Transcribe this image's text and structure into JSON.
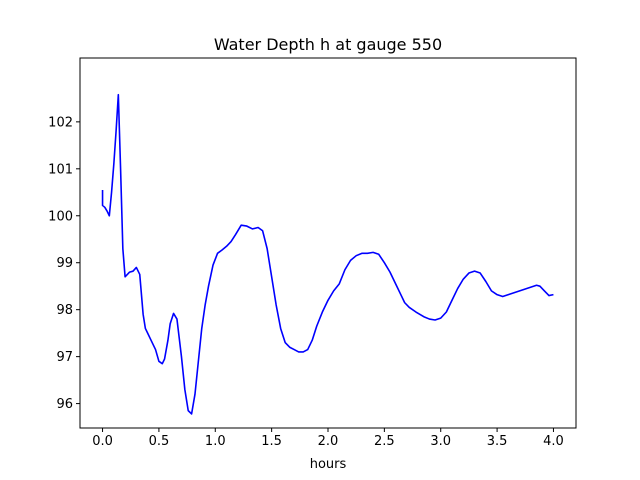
{
  "chart_data": {
    "type": "line",
    "title": "Water Depth h at gauge 550",
    "xlabel": "hours",
    "ylabel": "",
    "xlim": [
      -0.2,
      4.2
    ],
    "ylim": [
      95.48,
      103.36
    ],
    "xticks": [
      0.0,
      0.5,
      1.0,
      1.5,
      2.0,
      2.5,
      3.0,
      3.5,
      4.0
    ],
    "xtick_labels": [
      "0.0",
      "0.5",
      "1.0",
      "1.5",
      "2.0",
      "2.5",
      "3.0",
      "3.5",
      "4.0"
    ],
    "yticks": [
      96,
      97,
      98,
      99,
      100,
      101,
      102
    ],
    "ytick_labels": [
      "96",
      "97",
      "98",
      "99",
      "100",
      "101",
      "102"
    ],
    "grid": false,
    "series": [
      {
        "color": "#0000ff",
        "x": [
          0.0,
          0.0,
          0.02,
          0.04,
          0.06,
          0.08,
          0.1,
          0.12,
          0.14,
          0.16,
          0.18,
          0.2,
          0.22,
          0.24,
          0.27,
          0.3,
          0.33,
          0.36,
          0.38,
          0.4,
          0.43,
          0.47,
          0.5,
          0.53,
          0.55,
          0.58,
          0.6,
          0.63,
          0.66,
          0.7,
          0.73,
          0.76,
          0.79,
          0.82,
          0.85,
          0.88,
          0.91,
          0.94,
          0.98,
          1.02,
          1.06,
          1.1,
          1.14,
          1.18,
          1.23,
          1.28,
          1.33,
          1.38,
          1.42,
          1.46,
          1.5,
          1.54,
          1.58,
          1.62,
          1.66,
          1.7,
          1.74,
          1.78,
          1.82,
          1.86,
          1.9,
          1.95,
          2.0,
          2.05,
          2.1,
          2.15,
          2.2,
          2.25,
          2.3,
          2.35,
          2.4,
          2.45,
          2.5,
          2.55,
          2.6,
          2.65,
          2.68,
          2.72,
          2.78,
          2.85,
          2.9,
          2.95,
          3.0,
          3.05,
          3.1,
          3.15,
          3.2,
          3.25,
          3.3,
          3.35,
          3.4,
          3.45,
          3.5,
          3.55,
          3.6,
          3.65,
          3.7,
          3.75,
          3.8,
          3.85,
          3.88,
          3.92,
          3.96,
          4.0
        ],
        "y": [
          100.55,
          100.22,
          100.18,
          100.1,
          100.0,
          100.5,
          101.1,
          101.8,
          102.58,
          101.0,
          99.3,
          98.7,
          98.75,
          98.8,
          98.82,
          98.9,
          98.75,
          97.9,
          97.6,
          97.5,
          97.35,
          97.15,
          96.9,
          96.85,
          96.95,
          97.35,
          97.7,
          97.92,
          97.8,
          97.0,
          96.3,
          95.85,
          95.78,
          96.2,
          96.9,
          97.6,
          98.1,
          98.5,
          98.95,
          99.2,
          99.27,
          99.35,
          99.45,
          99.6,
          99.8,
          99.78,
          99.72,
          99.75,
          99.68,
          99.3,
          98.7,
          98.1,
          97.6,
          97.3,
          97.2,
          97.15,
          97.1,
          97.1,
          97.15,
          97.35,
          97.65,
          97.95,
          98.2,
          98.4,
          98.55,
          98.85,
          99.05,
          99.15,
          99.2,
          99.2,
          99.22,
          99.18,
          99.0,
          98.8,
          98.55,
          98.3,
          98.15,
          98.05,
          97.95,
          97.85,
          97.8,
          97.78,
          97.82,
          97.95,
          98.2,
          98.45,
          98.65,
          98.78,
          98.82,
          98.78,
          98.6,
          98.4,
          98.32,
          98.28,
          98.32,
          98.36,
          98.4,
          98.44,
          98.48,
          98.52,
          98.5,
          98.4,
          98.3,
          98.32
        ]
      }
    ]
  }
}
